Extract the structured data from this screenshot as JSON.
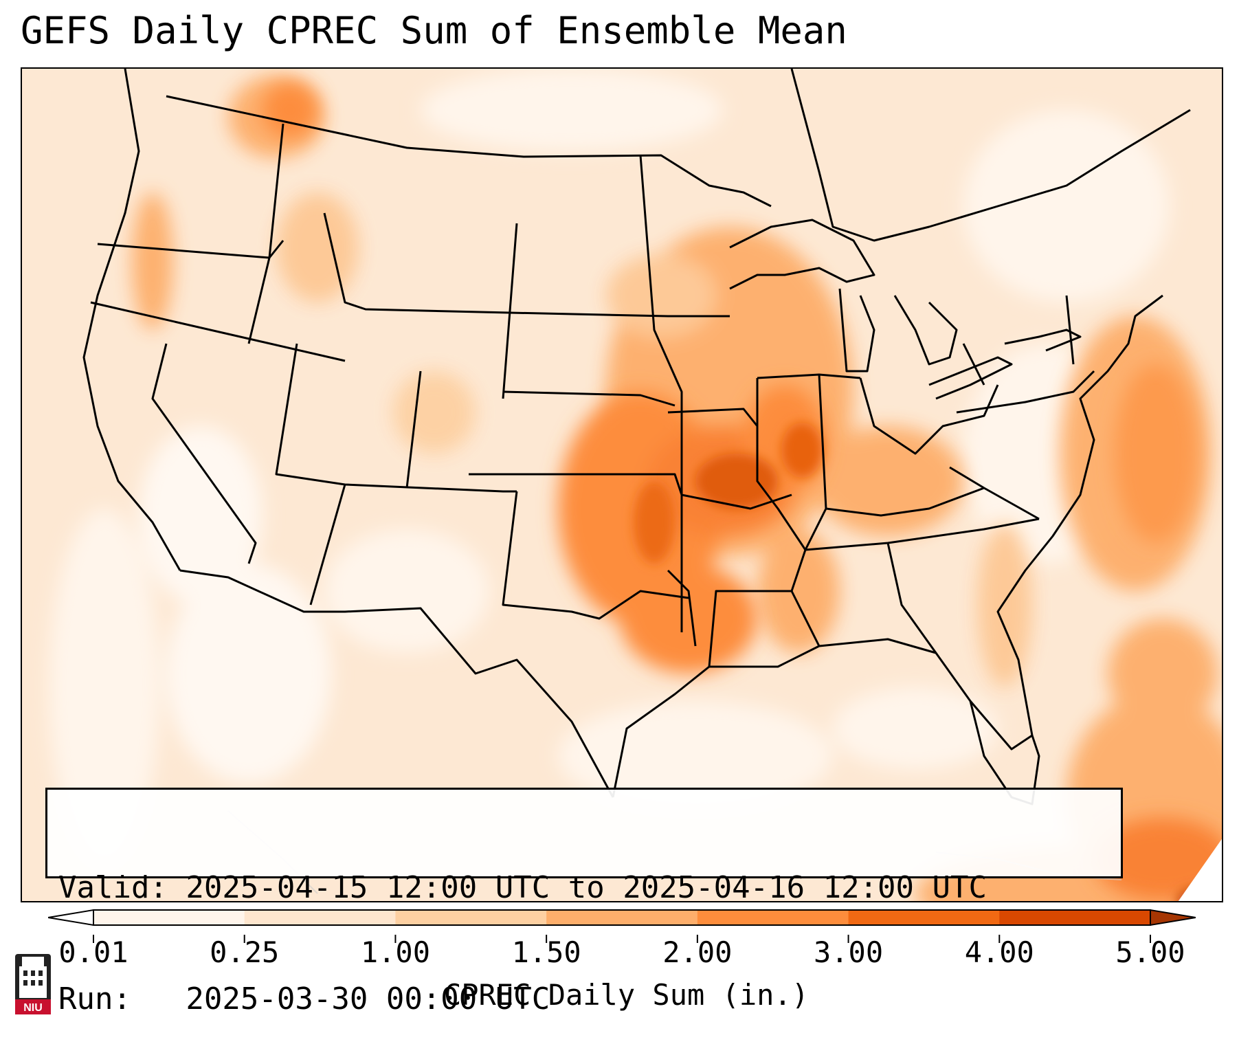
{
  "title": "GEFS Daily CPREC Sum of Ensemble Mean",
  "info": {
    "valid": "Valid: 2025-04-15 12:00 UTC to 2025-04-16 12:00 UTC",
    "run": "Run:   2025-03-30 00:00 UTC"
  },
  "colorbar": {
    "label": "CPREC Daily Sum (in.)",
    "ticks": [
      "0.01",
      "0.25",
      "1.00",
      "1.50",
      "2.00",
      "3.00",
      "4.00",
      "5.00"
    ],
    "colors": [
      "#fff5eb",
      "#fee6ce",
      "#fdd0a2",
      "#fdae6b",
      "#fd8d3c",
      "#f16913",
      "#d94801",
      "#a63603"
    ],
    "extend": "both"
  },
  "logo": {
    "text": "NIU",
    "icon": "university-building-icon",
    "color": "#c8102e"
  },
  "map": {
    "region": "Contiguous United States",
    "palette": "oranges",
    "heavy_precip_areas": [
      "Missouri",
      "Arkansas",
      "Oklahoma",
      "Louisiana",
      "Illinois",
      "Iowa",
      "Western Atlantic",
      "Caribbean"
    ]
  }
}
